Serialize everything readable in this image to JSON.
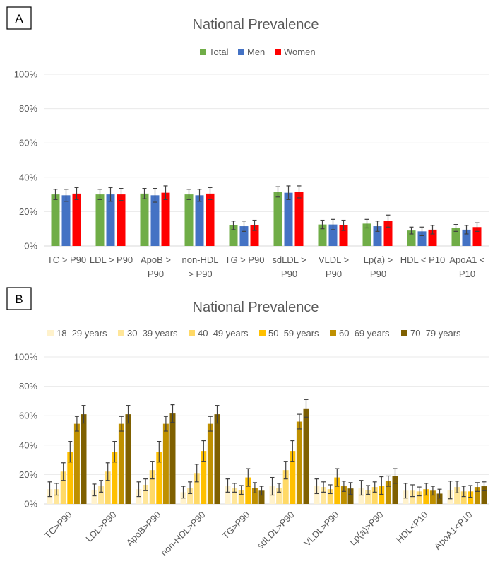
{
  "chart_data": [
    {
      "panel_label": "A",
      "type": "bar",
      "title": "National Prevalence",
      "categories": [
        [
          "TC > P90"
        ],
        [
          "LDL > P90"
        ],
        [
          "ApoB >",
          "P90"
        ],
        [
          "non-HDL",
          "> P90"
        ],
        [
          "TG > P90"
        ],
        [
          "sdLDL >",
          "P90"
        ],
        [
          "VLDL >",
          "P90"
        ],
        [
          "Lp(a)  >",
          "P90"
        ],
        [
          "HDL < P10"
        ],
        [
          "ApoA1 <",
          "P10"
        ]
      ],
      "yticks": [
        "0%",
        "20%",
        "40%",
        "60%",
        "80%",
        "100%"
      ],
      "ylim": [
        0,
        100
      ],
      "legend_position": "top-center",
      "series": [
        {
          "name": "Total",
          "color": "#70AD47",
          "values": [
            30,
            30,
            30.5,
            30,
            12,
            31.5,
            12.5,
            13,
            9,
            10.5
          ],
          "errors": [
            3,
            3,
            3,
            3,
            2.5,
            3,
            2.5,
            2.5,
            2,
            2
          ]
        },
        {
          "name": "Men",
          "color": "#4472C4",
          "values": [
            29.5,
            30,
            29.5,
            29.5,
            11.5,
            31,
            12.5,
            11.5,
            8.5,
            9.5
          ],
          "errors": [
            3.5,
            4,
            4,
            3.5,
            3,
            4,
            3,
            3,
            2.5,
            2.5
          ]
        },
        {
          "name": "Women",
          "color": "#FF0000",
          "values": [
            30.5,
            30,
            31,
            30.5,
            12,
            31.5,
            12,
            14.5,
            9.5,
            11
          ],
          "errors": [
            3.5,
            3.5,
            4,
            3.5,
            3,
            3.5,
            3,
            3.5,
            2.5,
            2.5
          ]
        }
      ]
    },
    {
      "panel_label": "B",
      "type": "bar",
      "title": "National Prevalence",
      "categories": [
        "TC>P90",
        "LDL>P90",
        "ApoB>P90",
        "non-HDL>P90",
        "TG>P90",
        "sdLDL>P90",
        "VLDL>P90",
        "Lp(a)>P90",
        "HDL<P10",
        "ApoA1<P10"
      ],
      "yticks": [
        "0%",
        "20%",
        "40%",
        "60%",
        "80%",
        "100%"
      ],
      "ylim": [
        0,
        100
      ],
      "legend_position": "top",
      "series": [
        {
          "name": "18–29 years",
          "color": "#FFF2CC",
          "values": [
            10,
            9.5,
            10,
            8,
            12.5,
            12,
            12,
            11,
            9,
            9.5
          ],
          "errors": [
            5,
            4,
            5,
            4,
            4.5,
            6,
            5,
            5,
            5,
            6
          ]
        },
        {
          "name": "30–39 years",
          "color": "#FFE699",
          "values": [
            10,
            12,
            13,
            11,
            11,
            11,
            11.5,
            9.5,
            9,
            11.5
          ],
          "errors": [
            4,
            4,
            4,
            4,
            3,
            3,
            3.5,
            3,
            4,
            4
          ]
        },
        {
          "name": "40–49 years",
          "color": "#FFD966",
          "values": [
            22,
            22,
            23,
            21,
            9.5,
            23,
            10,
            11.5,
            8.5,
            8.5
          ],
          "errors": [
            6,
            6,
            6,
            6,
            3,
            6,
            3,
            3.5,
            3,
            3.5
          ]
        },
        {
          "name": "50–59 years",
          "color": "#FFC000",
          "values": [
            35.5,
            35.5,
            35.5,
            36,
            18,
            36,
            18,
            12.5,
            10,
            8.5
          ],
          "errors": [
            7,
            7,
            7,
            7,
            6,
            7,
            6,
            6,
            4,
            4
          ]
        },
        {
          "name": "60–69 years",
          "color": "#BF9000",
          "values": [
            54.5,
            54.5,
            54.5,
            54.5,
            11,
            56,
            12,
            15.5,
            9,
            11.5
          ],
          "errors": [
            5,
            5,
            5,
            5,
            3.5,
            5,
            3.5,
            3.5,
            3,
            3
          ]
        },
        {
          "name": "70–79 years",
          "color": "#7F6000",
          "values": [
            61,
            61,
            61.5,
            61,
            9,
            65,
            10.5,
            19,
            7,
            12
          ],
          "errors": [
            6,
            6,
            6,
            6,
            3,
            6,
            4,
            5,
            3,
            3
          ]
        }
      ]
    }
  ]
}
